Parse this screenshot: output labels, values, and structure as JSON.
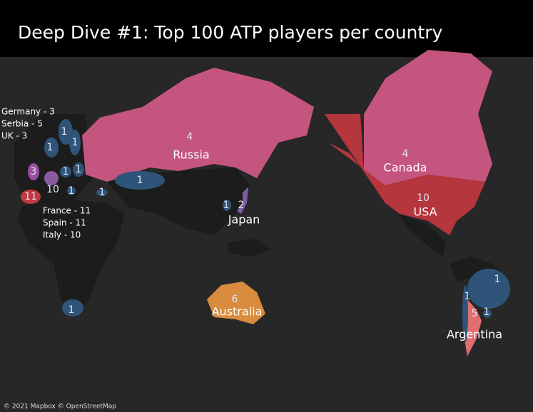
{
  "title": "Deep Dive #1: Top 100 ATP players per country",
  "regions": [
    {
      "name": "Russia",
      "count": 4,
      "color": "#c4557f"
    },
    {
      "name": "Canada",
      "count": 4,
      "color": "#c4557f"
    },
    {
      "name": "USA",
      "count": 10,
      "color": "#b5363d"
    },
    {
      "name": "Japan",
      "count": 2,
      "color": "#7d5ca2"
    },
    {
      "name": "Australia",
      "count": 6,
      "color": "#d98b3e"
    },
    {
      "name": "Argentina",
      "count": 5,
      "color": "#e06d70"
    },
    {
      "count": 1,
      "color": "#2e5479"
    },
    {
      "count": 1,
      "color": "#2e5479"
    },
    {
      "count": 1,
      "color": "#2e5479"
    },
    {
      "count": 1,
      "color": "#2e5479"
    },
    {
      "count": 1,
      "color": "#2e5479"
    },
    {
      "count": 1,
      "color": "#2e5479"
    },
    {
      "count": 1,
      "color": "#2e5479"
    },
    {
      "count": 1,
      "color": "#2e5479"
    },
    {
      "count": 1,
      "color": "#2e5479"
    },
    {
      "count": 1,
      "color": "#2e5479"
    },
    {
      "count": 3,
      "color": "#9a4f9e"
    },
    {
      "count": 1,
      "color": "#2e5479"
    },
    {
      "count": 1,
      "color": "#2e5479"
    },
    {
      "count": 10,
      "color": "#8a5a9e"
    },
    {
      "count": 11,
      "color": "#c0393f"
    },
    {
      "count": 1,
      "color": "#2e5479"
    }
  ],
  "annotations": [
    "Germany - 3",
    "Serbia - 5",
    "UK - 3",
    "France - 11",
    "Spain - 11",
    "Italy - 10"
  ],
  "attribution": "© 2021 Mapbox © OpenStreetMap"
}
